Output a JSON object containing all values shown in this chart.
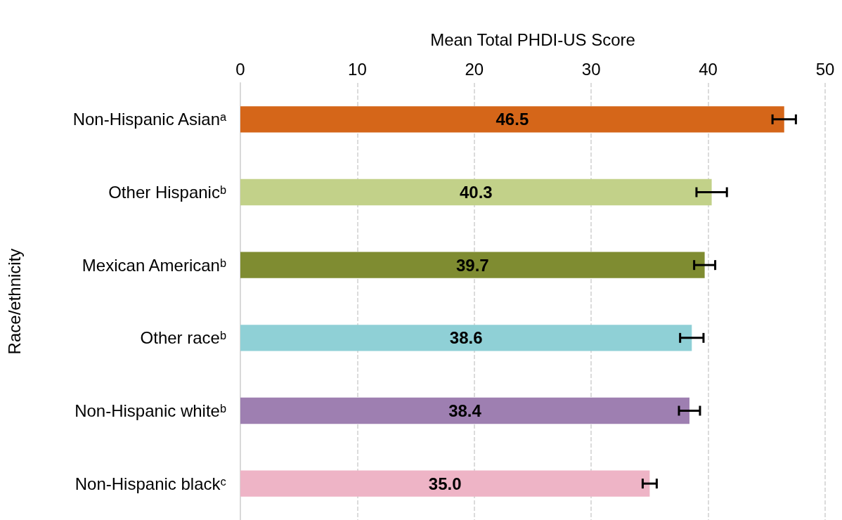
{
  "chart_data": {
    "type": "bar",
    "orientation": "horizontal",
    "xlabel": "Mean Total PHDI-US Score",
    "ylabel": "Race/ethnicity",
    "categories": [
      "Non-Hispanic Asianᵃ",
      "Other Hispanicᵇ",
      "Mexican Americanᵇ",
      "Other raceᵇ",
      "Non-Hispanic whiteᵇ",
      "Non-Hispanic blackᶜ"
    ],
    "values": [
      46.5,
      40.3,
      39.7,
      38.6,
      38.4,
      35.0
    ],
    "colors": [
      "#d56619",
      "#c2d189",
      "#7f8c31",
      "#8fd0d6",
      "#9e7fb1",
      "#eeb4c6"
    ],
    "errors": [
      1.0,
      1.3,
      0.9,
      1.0,
      0.9,
      0.6
    ],
    "value_labels": [
      "46.5",
      "40.3",
      "39.7",
      "38.6",
      "38.4",
      "35.0"
    ],
    "xlim": [
      0,
      50
    ],
    "xticks": [
      0,
      10,
      20,
      30,
      40,
      50
    ],
    "grid": "x"
  }
}
